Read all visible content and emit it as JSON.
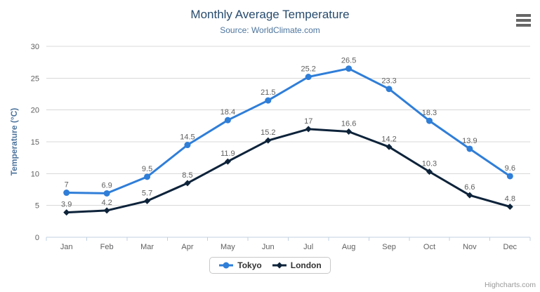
{
  "chart_data": {
    "type": "line",
    "title": "Monthly Average Temperature",
    "subtitle": "Source: WorldClimate.com",
    "categories": [
      "Jan",
      "Feb",
      "Mar",
      "Apr",
      "May",
      "Jun",
      "Jul",
      "Aug",
      "Sep",
      "Oct",
      "Nov",
      "Dec"
    ],
    "series": [
      {
        "name": "Tokyo",
        "color": "#2f7ed8",
        "marker": "circle",
        "values": [
          7,
          6.9,
          9.5,
          14.5,
          18.4,
          21.5,
          25.2,
          26.5,
          23.3,
          18.3,
          13.9,
          9.6
        ]
      },
      {
        "name": "London",
        "color": "#0d233a",
        "marker": "diamond",
        "values": [
          3.9,
          4.2,
          5.7,
          8.5,
          11.9,
          15.2,
          17,
          16.6,
          14.2,
          10.3,
          6.6,
          4.8
        ]
      }
    ],
    "xlabel": "",
    "ylabel": "Temperature (°C)",
    "ylim": [
      0,
      30
    ],
    "ytick_interval": 5,
    "grid": true,
    "legend_position": "bottom",
    "data_labels": true
  },
  "credits": {
    "text": "Highcharts.com"
  },
  "menu": {
    "icon": "hamburger-menu-icon"
  },
  "colors": {
    "title": "#274b6d",
    "subtitle": "#4d759e",
    "axis_title": "#4d759e",
    "tick_label": "#606060",
    "data_label": "#606060",
    "gridline": "#d8d8d8",
    "axis_line": "#c0d0e0",
    "legend_border": "#c8c8c8",
    "legend_text": "#333333",
    "credits": "#999999",
    "menu_icon": "#666666",
    "background": "#ffffff"
  }
}
